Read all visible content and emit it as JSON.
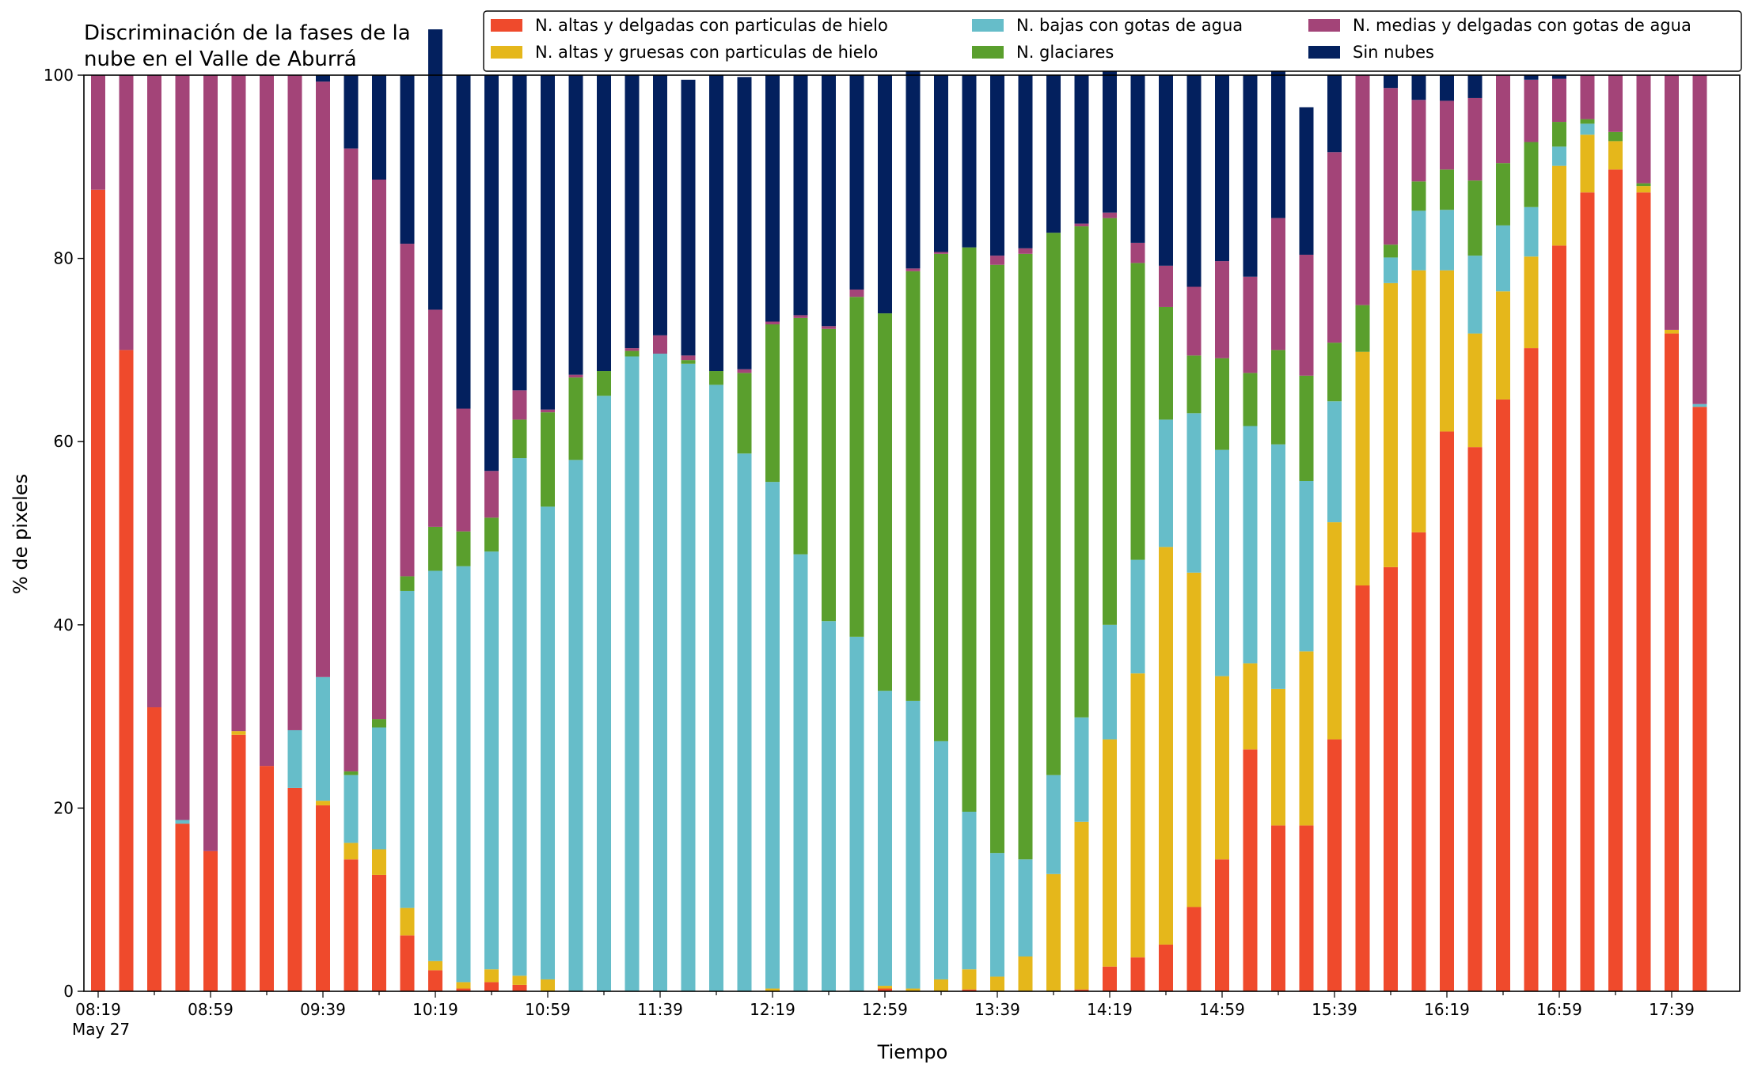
{
  "chart_data": {
    "type": "bar",
    "stacked": true,
    "title": "Discriminación de la fases de la\nnube en el Valle de Aburrá",
    "xlabel": "Tiempo",
    "ylabel": "% de pixeles",
    "ylim": [
      0,
      100
    ],
    "yticks": [
      0,
      20,
      40,
      60,
      80,
      100
    ],
    "grid": false,
    "legend_position": "top",
    "x": [
      "08:19",
      "08:29",
      "08:39",
      "08:49",
      "08:59",
      "09:09",
      "09:19",
      "09:29",
      "09:39",
      "09:49",
      "09:59",
      "10:09",
      "10:19",
      "10:29",
      "10:39",
      "10:49",
      "10:59",
      "11:09",
      "11:19",
      "11:29",
      "11:39",
      "11:49",
      "11:59",
      "12:09",
      "12:19",
      "12:29",
      "12:39",
      "12:49",
      "12:59",
      "13:09",
      "13:19",
      "13:29",
      "13:39",
      "13:49",
      "13:59",
      "14:09",
      "14:19",
      "14:29",
      "14:39",
      "14:49",
      "14:59",
      "15:09",
      "15:19",
      "15:29",
      "15:39",
      "15:49",
      "15:59",
      "16:09",
      "16:19",
      "16:29",
      "16:39",
      "16:49",
      "16:59",
      "17:09",
      "17:19",
      "17:29",
      "17:39",
      "17:49"
    ],
    "xtick_labels": [
      {
        "index": 0,
        "label": "08:19",
        "sublabel": "May 27"
      },
      {
        "index": 4,
        "label": "08:59"
      },
      {
        "index": 8,
        "label": "09:39"
      },
      {
        "index": 12,
        "label": "10:19"
      },
      {
        "index": 16,
        "label": "10:59"
      },
      {
        "index": 20,
        "label": "11:39"
      },
      {
        "index": 24,
        "label": "12:19"
      },
      {
        "index": 28,
        "label": "12:59"
      },
      {
        "index": 32,
        "label": "13:39"
      },
      {
        "index": 36,
        "label": "14:19"
      },
      {
        "index": 40,
        "label": "14:59"
      },
      {
        "index": 44,
        "label": "15:39"
      },
      {
        "index": 48,
        "label": "16:19"
      },
      {
        "index": 52,
        "label": "16:59"
      },
      {
        "index": 56,
        "label": "17:39"
      }
    ],
    "series": [
      {
        "name": "N. altas y delgadas con particulas de hielo",
        "color": "#ef4a2c",
        "values": [
          87.5,
          70,
          31,
          18.3,
          15.3,
          28,
          24.6,
          22.2,
          20.3,
          14.4,
          12.7,
          6.1,
          2.3,
          0.3,
          1,
          0.7,
          0,
          0,
          0,
          0,
          0,
          0,
          0,
          0,
          0,
          0,
          0,
          0,
          0.3,
          0,
          0,
          0.2,
          0,
          0,
          0,
          0.2,
          2.7,
          3.7,
          5.1,
          9.2,
          14.4,
          26.4,
          18.1,
          18.1,
          27.5,
          44.3,
          46.3,
          50.1,
          61.1,
          59.4,
          64.6,
          70.2,
          81.4,
          87.2,
          89.7,
          87.2,
          71.8,
          63.8
        ]
      },
      {
        "name": "N. altas y gruesas con particulas de hielo",
        "color": "#e5b71b",
        "values": [
          0,
          0,
          0,
          0,
          0,
          0.4,
          0,
          0,
          0.5,
          1.8,
          2.8,
          3,
          1,
          0.7,
          1.4,
          1,
          1.3,
          0,
          0,
          0,
          0,
          0,
          0,
          0,
          0.3,
          0,
          0,
          0,
          0.3,
          0.3,
          1.3,
          2.2,
          1.6,
          3.8,
          12.8,
          18.3,
          24.8,
          31,
          43.4,
          36.5,
          20,
          9.4,
          14.9,
          19,
          23.7,
          25.5,
          31,
          28.6,
          17.6,
          12.4,
          11.8,
          10,
          8.7,
          6.3,
          3.1,
          0.7,
          0.4,
          0
        ]
      },
      {
        "name": "N. bajas con gotas de agua",
        "color": "#66bdc9",
        "values": [
          0,
          0,
          0,
          0.4,
          0,
          0,
          0,
          6.3,
          13.5,
          7.4,
          13.3,
          34.6,
          42.6,
          45.4,
          45.6,
          56.5,
          51.6,
          58,
          65,
          69.3,
          69.6,
          68.5,
          66.2,
          58.7,
          55.3,
          47.7,
          40.4,
          38.7,
          32.2,
          31.4,
          26,
          17.2,
          13.5,
          10.6,
          10.8,
          11.4,
          12.5,
          12.4,
          13.9,
          17.4,
          24.7,
          25.9,
          26.7,
          18.6,
          13.2,
          0,
          2.8,
          6.5,
          6.6,
          8.5,
          7.2,
          5.4,
          2.1,
          1.2,
          0,
          0,
          0,
          0.3
        ]
      },
      {
        "name": "N. glaciares",
        "color": "#5a9f2d",
        "values": [
          0,
          0,
          0,
          0,
          0,
          0,
          0,
          0,
          0,
          0.4,
          0.9,
          1.6,
          4.8,
          3.8,
          3.7,
          4.2,
          10.3,
          9,
          2.7,
          0.6,
          0,
          0.4,
          1.5,
          8.8,
          17.2,
          25.8,
          31.9,
          37.1,
          41.2,
          46.9,
          53.2,
          61.6,
          64.2,
          66.1,
          59.2,
          53.6,
          44.4,
          32.4,
          12.3,
          6.3,
          10,
          5.8,
          10.3,
          11.5,
          6.4,
          5.1,
          1.4,
          3.2,
          4.4,
          8.2,
          6.8,
          7.1,
          2.7,
          0.5,
          1,
          0.3,
          0,
          0
        ]
      },
      {
        "name": "N. medias y delgadas con gotas de agua",
        "color": "#a34478",
        "values": [
          12.5,
          30,
          69,
          81.3,
          84.7,
          71.6,
          75.4,
          71.5,
          65,
          68,
          58.9,
          36.3,
          23.7,
          13.4,
          5.1,
          3.2,
          0.3,
          0.3,
          0,
          0.3,
          2,
          0.5,
          0,
          0.4,
          0.3,
          0.3,
          0.3,
          0.8,
          0,
          0.3,
          0.2,
          0,
          1,
          0.6,
          0,
          0.3,
          0.6,
          2.2,
          4.5,
          7.5,
          10.6,
          10.5,
          14.4,
          13.2,
          20.8,
          25.1,
          17.1,
          8.9,
          7.5,
          9,
          9.6,
          6.8,
          4.7,
          4.8,
          6.2,
          11.8,
          27.8,
          35.9
        ]
      },
      {
        "name": "Sin nubes",
        "color": "#03205e",
        "values": [
          0,
          0,
          0,
          0,
          0,
          0,
          0,
          0,
          0.7,
          8,
          11.4,
          18.4,
          30.6,
          36.4,
          43.2,
          34.4,
          36.5,
          32.7,
          32.3,
          29.8,
          28.4,
          30.1,
          32.3,
          31.9,
          26.9,
          26.2,
          27.4,
          23.4,
          26,
          21.7,
          19.3,
          18.8,
          19.7,
          18.9,
          17.2,
          16.2,
          15.4,
          18.3,
          20.8,
          23.1,
          20.3,
          22,
          18.1,
          16.1,
          8.4,
          0,
          1.4,
          2.7,
          2.8,
          2.5,
          0,
          0.5,
          0.4,
          0,
          0,
          0,
          0,
          0
        ]
      }
    ]
  }
}
